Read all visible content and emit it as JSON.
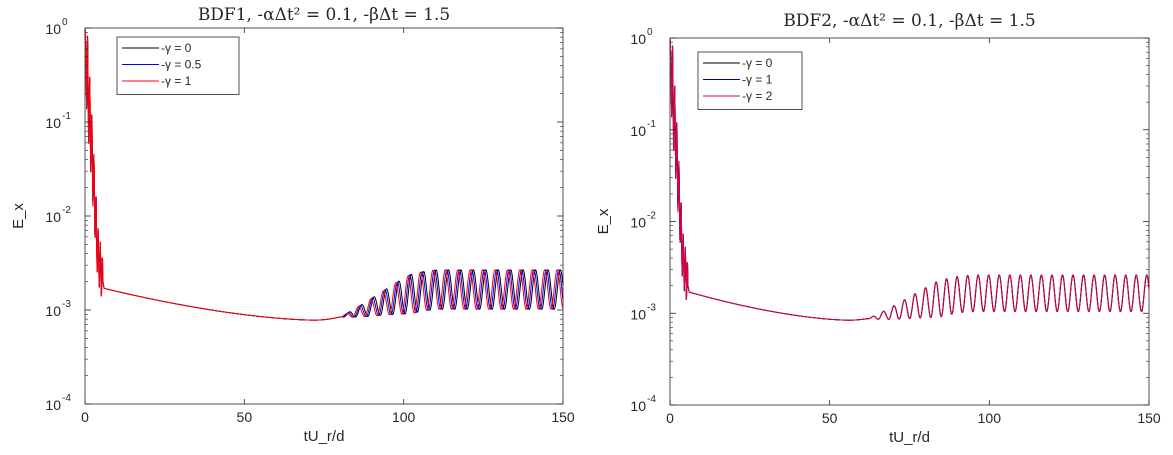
{
  "chart_data": [
    {
      "type": "line",
      "title": "BDF1, -αΔt² = 0.1, -βΔt = 1.5",
      "xlabel": "tU_r/d",
      "ylabel": "E_x",
      "xlim": [
        0,
        150
      ],
      "ylim": [
        0.0001,
        1
      ],
      "yscale": "log",
      "xticks": [
        "0",
        "50",
        "100",
        "150"
      ],
      "yticks": [
        {
          "base": "10",
          "exp": "0",
          "value": 1
        },
        {
          "base": "10",
          "exp": "-1",
          "value": 0.1
        },
        {
          "base": "10",
          "exp": "-2",
          "value": 0.01
        },
        {
          "base": "10",
          "exp": "-3",
          "value": 0.001
        },
        {
          "base": "10",
          "exp": "-4",
          "value": 0.0001
        }
      ],
      "grid": false,
      "legend_position": "top-left",
      "series": [
        {
          "name": "-γ = 0",
          "color": "#000000",
          "params": {
            "minx": 72,
            "minv": 0.00078,
            "onset": 80,
            "amp": 0.21,
            "period": 3.9,
            "phase": 0.0
          }
        },
        {
          "name": "-γ = 0.5",
          "color": "#0000ff",
          "params": {
            "minx": 72,
            "minv": 0.00078,
            "onset": 80,
            "amp": 0.21,
            "period": 3.9,
            "phase": 0.8
          }
        },
        {
          "name": "-γ = 1",
          "color": "#ff0000",
          "params": {
            "minx": 72,
            "minv": 0.00078,
            "onset": 80,
            "amp": 0.21,
            "period": 3.9,
            "phase": 1.6
          }
        }
      ],
      "data": [
        {
          "x": 0,
          "y": 1.0
        },
        {
          "x": 1,
          "y": 0.2
        },
        {
          "x": 2,
          "y": 0.06
        },
        {
          "x": 3,
          "y": 0.015
        },
        {
          "x": 4,
          "y": 0.004
        },
        {
          "x": 6,
          "y": 0.0017
        },
        {
          "x": 10,
          "y": 0.0014
        },
        {
          "x": 20,
          "y": 0.00115
        },
        {
          "x": 40,
          "y": 0.00092
        },
        {
          "x": 60,
          "y": 0.00082
        },
        {
          "x": 72,
          "y": 0.00078
        },
        {
          "x": 80,
          "y": 0.0008
        },
        {
          "x": 90,
          "y": 0.001
        },
        {
          "x": 100,
          "y": 0.0014
        },
        {
          "x": 110,
          "y": 0.0017
        },
        {
          "x": 120,
          "y": 0.0018
        },
        {
          "x": 150,
          "y": 0.0018
        }
      ]
    },
    {
      "type": "line",
      "title": "BDF2, -αΔt² = 0.1, -βΔt = 1.5",
      "xlabel": "tU_r/d",
      "ylabel": "E_x",
      "xlim": [
        0,
        150
      ],
      "ylim": [
        0.0001,
        1
      ],
      "yscale": "log",
      "xticks": [
        "0",
        "50",
        "100",
        "150"
      ],
      "yticks": [
        {
          "base": "10",
          "exp": "0",
          "value": 1
        },
        {
          "base": "10",
          "exp": "-1",
          "value": 0.1
        },
        {
          "base": "10",
          "exp": "-2",
          "value": 0.01
        },
        {
          "base": "10",
          "exp": "-3",
          "value": 0.001
        },
        {
          "base": "10",
          "exp": "-4",
          "value": 0.0001
        }
      ],
      "grid": false,
      "legend_position": "top-left",
      "series": [
        {
          "name": "-γ = 0",
          "color": "#000000",
          "params": {
            "minx": 56,
            "minv": 0.00084,
            "onset": 62,
            "amp": 0.2,
            "period": 3.3,
            "phase": 0.0
          }
        },
        {
          "name": "-γ = 1",
          "color": "#00008b",
          "params": {
            "minx": 56,
            "minv": 0.00084,
            "onset": 62,
            "amp": 0.2,
            "period": 3.3,
            "phase": 0.05
          }
        },
        {
          "name": "-γ = 2",
          "color": "#e00040",
          "params": {
            "minx": 56,
            "minv": 0.00084,
            "onset": 62,
            "amp": 0.2,
            "period": 3.3,
            "phase": 0.1
          }
        }
      ],
      "data": [
        {
          "x": 0,
          "y": 1.0
        },
        {
          "x": 1,
          "y": 0.2
        },
        {
          "x": 2,
          "y": 0.06
        },
        {
          "x": 3,
          "y": 0.015
        },
        {
          "x": 4,
          "y": 0.004
        },
        {
          "x": 6,
          "y": 0.0017
        },
        {
          "x": 10,
          "y": 0.0014
        },
        {
          "x": 20,
          "y": 0.00115
        },
        {
          "x": 40,
          "y": 0.00092
        },
        {
          "x": 56,
          "y": 0.00084
        },
        {
          "x": 65,
          "y": 0.0009
        },
        {
          "x": 80,
          "y": 0.0015
        },
        {
          "x": 100,
          "y": 0.0017
        },
        {
          "x": 150,
          "y": 0.0017
        }
      ]
    }
  ]
}
